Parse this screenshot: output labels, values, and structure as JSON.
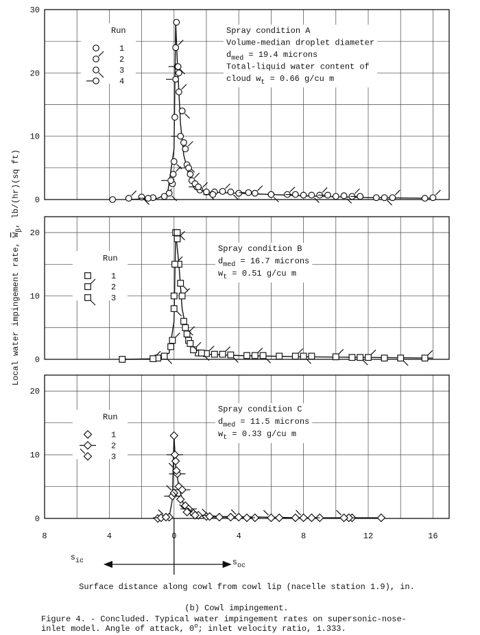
{
  "ylabel": {
    "before": "Local water impingement rate, ",
    "symbol": "W",
    "subscript": "β",
    "after": ", lb/(hr)(sq ft)"
  },
  "x_axis": {
    "xlim": [
      -8,
      17
    ],
    "xticks": [
      {
        "value": -8,
        "label": "8"
      },
      {
        "value": -4,
        "label": "4"
      },
      0,
      4,
      8,
      12,
      16
    ],
    "xgrid": [
      -6,
      -2,
      2,
      6,
      10,
      14
    ],
    "label": "Surface distance along cowl from cowl lip (nacelle station 1.9), in.",
    "inner_arrow": {
      "symbol": "s",
      "subscript": "ic"
    },
    "outer_arrow": {
      "symbol": "s",
      "subscript": "oc"
    }
  },
  "caption": "(b) Cowl impingement.",
  "figure_caption": [
    [
      {
        "text": "Figure 4. - Concluded.  Typical water impingement rates on supersonic-nose-"
      }
    ],
    [
      {
        "text": " inlet model.  Angle of attack, 0"
      },
      {
        "sup": "o"
      },
      {
        "text": "; inlet velocity ratio, 1.333."
      }
    ]
  ],
  "chart_data": [
    {
      "type": "scatter",
      "ylim": [
        0,
        30
      ],
      "yticks": [
        0,
        10,
        20,
        30
      ],
      "ygrid": [
        5,
        15,
        25
      ],
      "grid": true,
      "legend": "upper left",
      "legend_title": "Run",
      "annotation": [
        [
          {
            "text": "Spray condition A"
          }
        ],
        [
          {
            "text": "Volume-median droplet diameter"
          }
        ],
        [
          {
            "text": "d"
          },
          {
            "sub": "med"
          },
          {
            "text": " = 19.4 microns"
          }
        ],
        [
          {
            "text": "Total-liquid water content of"
          }
        ],
        [
          {
            "text": "cloud  w"
          },
          {
            "sub": "t"
          },
          {
            "text": " = 0.66 g/cu m"
          }
        ]
      ],
      "curve": {
        "x": [
          -2.8,
          -1,
          -0.4,
          0,
          0.1,
          0.2,
          0.4,
          0.6,
          0.9,
          1.2,
          1.6,
          2,
          4,
          8,
          12,
          16
        ],
        "values": [
          0,
          0.2,
          1,
          8,
          28,
          22,
          12,
          7,
          4,
          2.5,
          1.5,
          1.2,
          1,
          0.6,
          0.3,
          0.2
        ]
      },
      "series": [
        {
          "name": "1",
          "marker": "circle",
          "flag": "none",
          "x": [
            -3.8,
            -1.3,
            -0.1,
            0.05,
            0.15,
            0.3,
            0.6,
            1.0,
            1.4,
            2.5,
            4,
            6,
            8,
            10,
            12.5,
            15.5
          ],
          "values": [
            0,
            0.3,
            2.5,
            13,
            28,
            20,
            9,
            4,
            2,
            1.2,
            1,
            0.8,
            0.7,
            0.5,
            0.3,
            0.2
          ]
        },
        {
          "name": "2",
          "marker": "circle",
          "flag": "up-right",
          "x": [
            -2.8,
            -0.6,
            -0.05,
            0.1,
            0.3,
            0.7,
            1.1,
            1.6,
            3,
            5,
            7,
            9,
            11,
            13.5,
            16
          ],
          "values": [
            0.2,
            0.5,
            4,
            24,
            17,
            8,
            3,
            1.5,
            1.3,
            1,
            0.8,
            0.7,
            0.5,
            0.3,
            0.3
          ]
        },
        {
          "name": "3",
          "marker": "circle",
          "flag": "down-right",
          "x": [
            -2,
            -0.3,
            0,
            0.2,
            0.5,
            0.8,
            1.3,
            2,
            3.5,
            6,
            8.5,
            10.5,
            13
          ],
          "values": [
            0.4,
            1,
            6,
            21,
            14,
            5.5,
            2.5,
            1.2,
            1.2,
            0.8,
            0.7,
            0.6,
            0.3
          ]
        },
        {
          "name": "4",
          "marker": "circle",
          "flag": "left",
          "x": [
            -1.6,
            -0.2,
            0.1,
            0.25,
            0.4,
            0.9,
            1.5,
            2.4,
            4.6,
            7.5,
            9.5,
            11.5
          ],
          "values": [
            0.2,
            3,
            19,
            21,
            10,
            5,
            2,
            0.8,
            1.1,
            0.8,
            0.7,
            0.5
          ]
        }
      ]
    },
    {
      "type": "scatter",
      "ylim": [
        0,
        22.5
      ],
      "yticks": [
        0,
        10,
        20
      ],
      "ygrid": [
        5,
        15
      ],
      "grid": true,
      "legend": "center left",
      "legend_title": "Run",
      "annotation": [
        [
          {
            "text": "Spray condition B"
          }
        ],
        [
          {
            "text": "d"
          },
          {
            "sub": "med"
          },
          {
            "text": " = 16.7 microns"
          }
        ],
        [
          {
            "text": "w"
          },
          {
            "sub": "t"
          },
          {
            "text": " = 0.51 g/cu m"
          }
        ]
      ],
      "curve": {
        "x": [
          -3,
          -1,
          -0.3,
          0,
          0.1,
          0.3,
          0.5,
          0.8,
          1,
          1.5,
          2,
          4,
          8,
          12,
          16
        ],
        "values": [
          0,
          0.1,
          1,
          6,
          20,
          15,
          8,
          4,
          2,
          1,
          0.8,
          0.6,
          0.4,
          0.3,
          0.2
        ]
      },
      "series": [
        {
          "name": "1",
          "marker": "square",
          "flag": "none",
          "x": [
            -3.2,
            -1,
            -0.2,
            0,
            0.1,
            0.3,
            0.6,
            0.9,
            1.5,
            2.5,
            4.5,
            6.5,
            8.5,
            11,
            13
          ],
          "values": [
            0,
            0.2,
            2,
            10,
            20,
            15,
            6,
            3,
            1,
            0.8,
            0.6,
            0.5,
            0.5,
            0.3,
            0.2
          ]
        },
        {
          "name": "2",
          "marker": "square",
          "flag": "up-right",
          "x": [
            -1.3,
            -0.1,
            0.05,
            0.2,
            0.5,
            0.8,
            1.2,
            2,
            3,
            5,
            7.5,
            10,
            12,
            15.5
          ],
          "values": [
            0.1,
            3,
            15,
            19,
            10,
            4,
            1.5,
            0.9,
            0.8,
            0.6,
            0.5,
            0.4,
            0.3,
            0.2
          ]
        },
        {
          "name": "3",
          "marker": "square",
          "flag": "down-right",
          "x": [
            -0.6,
            0,
            0.2,
            0.4,
            0.7,
            1,
            1.7,
            3.5,
            5.5,
            8,
            11.5,
            14
          ],
          "values": [
            0.5,
            8,
            20,
            12,
            5,
            2.5,
            1,
            0.7,
            0.6,
            0.5,
            0.3,
            0.2
          ]
        }
      ]
    },
    {
      "type": "scatter",
      "ylim": [
        0,
        22.5
      ],
      "yticks": [
        0,
        10,
        20
      ],
      "ygrid": [
        5,
        15
      ],
      "grid": true,
      "legend": "center left",
      "legend_title": "Run",
      "annotation": [
        [
          {
            "text": "Spray condition C"
          }
        ],
        [
          {
            "text": "d"
          },
          {
            "sub": "med"
          },
          {
            "text": " = 11.5 microns"
          }
        ],
        [
          {
            "text": "w"
          },
          {
            "sub": "t"
          },
          {
            "text": " = 0.33 g/cu m"
          }
        ]
      ],
      "curve": {
        "x": [
          -1,
          -0.3,
          -0.1,
          0,
          0.1,
          0.3,
          0.6,
          1,
          1.5,
          3,
          8,
          13
        ],
        "values": [
          0,
          0.2,
          3,
          13,
          8,
          5,
          2,
          1,
          0.5,
          0.3,
          0.1,
          0.1
        ]
      },
      "series": [
        {
          "name": "1",
          "marker": "diamond",
          "flag": "none",
          "x": [
            -1,
            -0.3,
            0,
            0.1,
            0.3,
            0.7,
            1.2,
            2,
            3.5,
            5,
            7.5,
            9,
            11,
            12.8
          ],
          "values": [
            0,
            0.2,
            13,
            9,
            5,
            2,
            0.8,
            0.3,
            0.2,
            0.1,
            0.1,
            0.1,
            0.1,
            0.1
          ]
        },
        {
          "name": "2",
          "marker": "diamond",
          "flag": "horizontal",
          "x": [
            -0.8,
            -0.1,
            0.05,
            0.2,
            0.5,
            0.9,
            1.5,
            2.8,
            4.5,
            6.5,
            8.5,
            10.8
          ],
          "values": [
            0.1,
            3.5,
            10,
            7,
            4.5,
            1.5,
            0.5,
            0.2,
            0.1,
            0.1,
            0.1,
            0.1
          ]
        },
        {
          "name": "3",
          "marker": "diamond",
          "flag": "up-left",
          "x": [
            -0.5,
            0,
            0.15,
            0.4,
            0.8,
            1.3,
            2.2,
            4,
            6,
            8,
            10.5
          ],
          "values": [
            0.2,
            4,
            7.5,
            3,
            1,
            0.5,
            0.3,
            0.2,
            0.1,
            0.1,
            0.1
          ]
        }
      ]
    }
  ]
}
